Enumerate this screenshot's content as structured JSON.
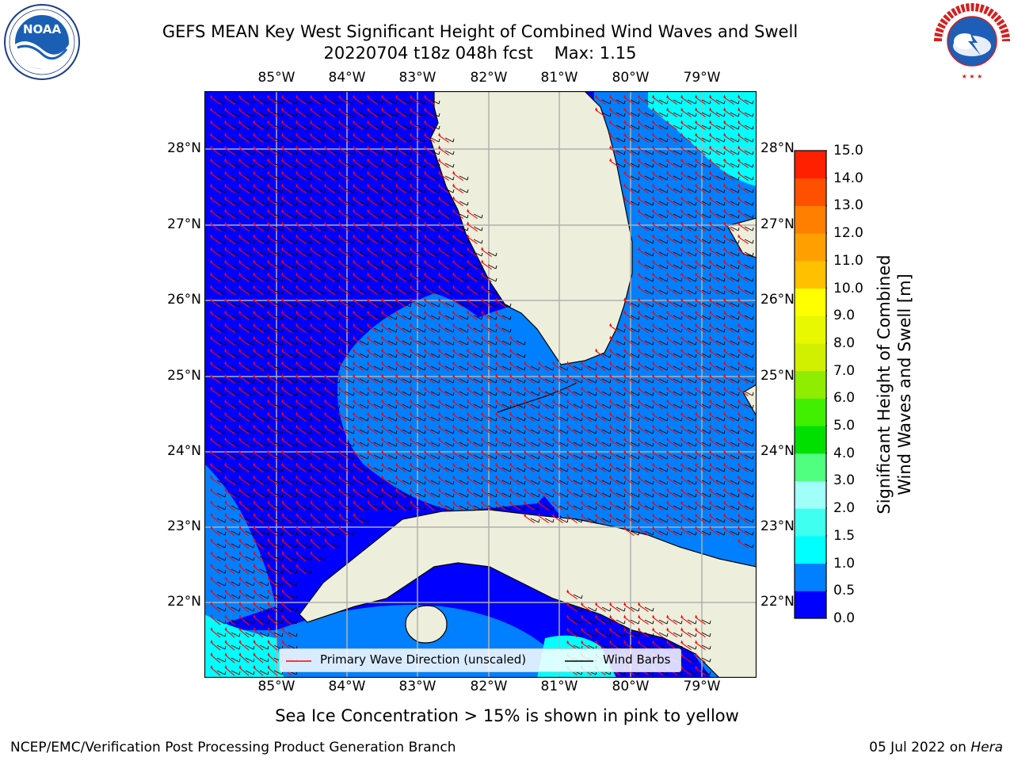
{
  "title": {
    "line1": "GEFS MEAN Key West Significant Height of Combined Wind Waves and Swell",
    "line2": "20220704 t18z 048h fcst    Max: 1.15"
  },
  "map": {
    "lon_labels": [
      "85°W",
      "84°W",
      "83°W",
      "82°W",
      "81°W",
      "80°W",
      "79°W"
    ],
    "lat_labels": [
      "28°N",
      "27°N",
      "26°N",
      "25°N",
      "24°N",
      "23°N",
      "22°N"
    ],
    "extent": {
      "lon_min": -86.0,
      "lon_max": -78.3,
      "lat_min": 21.0,
      "lat_max": 28.8
    }
  },
  "legend": {
    "wave_label": "Primary Wave Direction (unscaled)",
    "barb_label": "Wind Barbs",
    "wave_color": "#ff0000",
    "barb_color": "#000000"
  },
  "colorbar": {
    "title_line1": "Significant Height of Combined",
    "title_line2": "Wind Waves and Swell [m]",
    "tick_labels": [
      "15.0",
      "14.0",
      "13.0",
      "12.0",
      "11.0",
      "10.0",
      "9.0",
      "8.0",
      "7.0",
      "6.0",
      "5.0",
      "4.0",
      "3.0",
      "2.0",
      "1.5",
      "1.0",
      "0.5",
      "0.0"
    ],
    "levels_colors": [
      {
        "range": "0.0-0.5",
        "color": "#0000ff"
      },
      {
        "range": "0.5-1.0",
        "color": "#0080ff"
      },
      {
        "range": "1.0-1.5",
        "color": "#00ffff"
      },
      {
        "range": "1.5-2.0",
        "color": "#3ffff0"
      },
      {
        "range": "2.0-3.0",
        "color": "#a0fff8"
      },
      {
        "range": "3.0-4.0",
        "color": "#50ff80"
      },
      {
        "range": "4.0-5.0",
        "color": "#00e000"
      },
      {
        "range": "5.0-6.0",
        "color": "#40f000"
      },
      {
        "range": "6.0-7.0",
        "color": "#90ec00"
      },
      {
        "range": "7.0-8.0",
        "color": "#d0f000"
      },
      {
        "range": "8.0-9.0",
        "color": "#e8f800"
      },
      {
        "range": "9.0-10.0",
        "color": "#ffff00"
      },
      {
        "range": "10.0-11.0",
        "color": "#ffc000"
      },
      {
        "range": "11.0-12.0",
        "color": "#ffa000"
      },
      {
        "range": "12.0-13.0",
        "color": "#ff8000"
      },
      {
        "range": "13.0-14.0",
        "color": "#ff5000"
      },
      {
        "range": "14.0-15.0",
        "color": "#ff2000"
      }
    ]
  },
  "colors": {
    "land": "#eeeedc",
    "sea_low": "#0000ff",
    "sea_mid": "#0080ff",
    "sea_high": "#00ffff",
    "grid": "#b0b0b0"
  },
  "ice_note": "Sea Ice Concentration > 15% is shown in pink to yellow",
  "footer": {
    "left": "NCEP/EMC/Verification Post Processing Product Generation Branch",
    "right_date": "05 Jul 2022 on ",
    "right_host": "Hera"
  },
  "logos": {
    "noaa": "NOAA",
    "nws": "NATIONAL WEATHER SERVICE"
  }
}
